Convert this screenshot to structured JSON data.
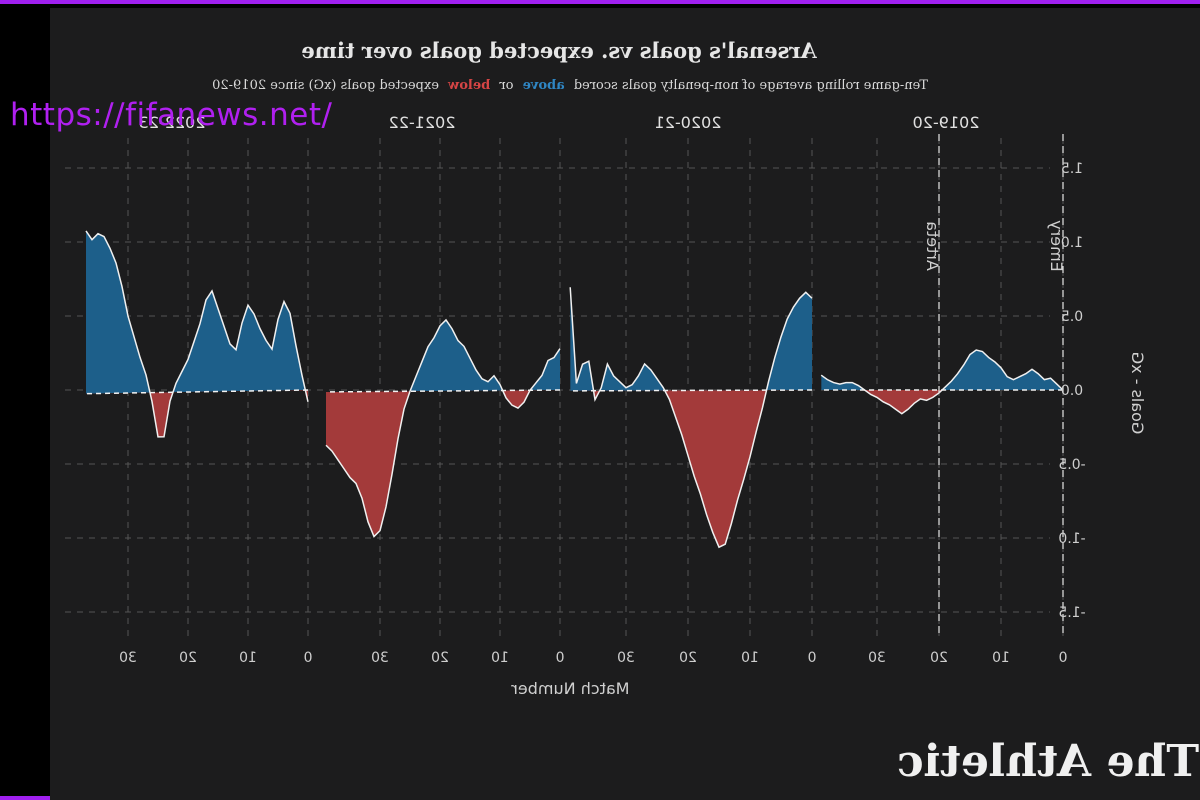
{
  "watermark": "https://fifanews.net/",
  "logo": "The Athletic",
  "chart_data": {
    "type": "area",
    "mirrored": true,
    "title": "Arsenal's goals vs. expected goals over time",
    "subtitle": {
      "prefix": "Ten-game rolling average of non-penalty goals scored",
      "above": "above",
      "or": "or",
      "below": "below",
      "suffix": "expected goals (xG) since 2019-20"
    },
    "xlabel": "Match Number",
    "ylabel": "Goals - xG",
    "ylim": [
      -1.5,
      1.5
    ],
    "yticks": [
      "1.5",
      "1.0",
      "0.5",
      "0.0",
      "-0.5",
      "-1.0",
      "-1.5"
    ],
    "yvalues": [
      1.5,
      1.0,
      0.5,
      0.0,
      -0.5,
      -1.0,
      -1.5
    ],
    "xticks": [
      "0",
      "10",
      "20",
      "30"
    ],
    "grid": true,
    "colors": {
      "above": "#1d5f8a",
      "below": "#a33a3a",
      "line": "#f0f0f0",
      "background": "#1c1c1d"
    },
    "annotations": [
      {
        "label": "Emery",
        "season": "2019-20",
        "match": 0
      },
      {
        "label": "Arteta",
        "season": "2019-20",
        "match": 20
      }
    ],
    "seasons": [
      {
        "name": "2019-20",
        "values": [
          0.0,
          0.04,
          0.08,
          0.07,
          0.11,
          0.14,
          0.11,
          0.09,
          0.07,
          0.09,
          0.15,
          0.19,
          0.22,
          0.26,
          0.27,
          0.24,
          0.17,
          0.11,
          0.06,
          0.02,
          -0.02,
          -0.05,
          -0.07,
          -0.06,
          -0.09,
          -0.13,
          -0.16,
          -0.13,
          -0.1,
          -0.08,
          -0.05,
          -0.03,
          0.0,
          0.03,
          0.05,
          0.05,
          0.04,
          0.05,
          0.07,
          0.1
        ]
      },
      {
        "name": "2020-21",
        "values": [
          0.62,
          0.66,
          0.62,
          0.56,
          0.48,
          0.36,
          0.22,
          0.06,
          -0.12,
          -0.28,
          -0.45,
          -0.6,
          -0.74,
          -0.9,
          -1.04,
          -1.06,
          -0.96,
          -0.84,
          -0.7,
          -0.58,
          -0.44,
          -0.3,
          -0.18,
          -0.06,
          0.02,
          0.08,
          0.14,
          0.18,
          0.1,
          0.04,
          0.02,
          0.06,
          0.1,
          0.18,
          0.02,
          -0.06,
          0.2,
          0.18,
          0.05,
          0.7
        ]
      },
      {
        "name": "2021-22",
        "values": [
          0.28,
          0.22,
          0.2,
          0.1,
          0.05,
          0.0,
          -0.08,
          -0.12,
          -0.1,
          -0.05,
          0.04,
          0.1,
          0.06,
          0.08,
          0.14,
          0.22,
          0.3,
          0.34,
          0.42,
          0.48,
          0.44,
          0.36,
          0.3,
          0.2,
          0.1,
          0.0,
          -0.12,
          -0.32,
          -0.56,
          -0.78,
          -0.94,
          -0.98,
          -0.88,
          -0.72,
          -0.62,
          -0.58,
          -0.52,
          -0.46,
          -0.4,
          -0.36
        ]
      },
      {
        "name": "2022-23",
        "values": [
          -0.08,
          0.1,
          0.3,
          0.52,
          0.6,
          0.48,
          0.28,
          0.34,
          0.42,
          0.52,
          0.58,
          0.46,
          0.28,
          0.32,
          0.44,
          0.56,
          0.68,
          0.62,
          0.46,
          0.34,
          0.22,
          0.14,
          0.06,
          -0.06,
          -0.3,
          -0.3,
          -0.06,
          0.12,
          0.24,
          0.38,
          0.52,
          0.72,
          0.88,
          0.98,
          1.06,
          1.08,
          1.04,
          1.1
        ]
      }
    ]
  }
}
